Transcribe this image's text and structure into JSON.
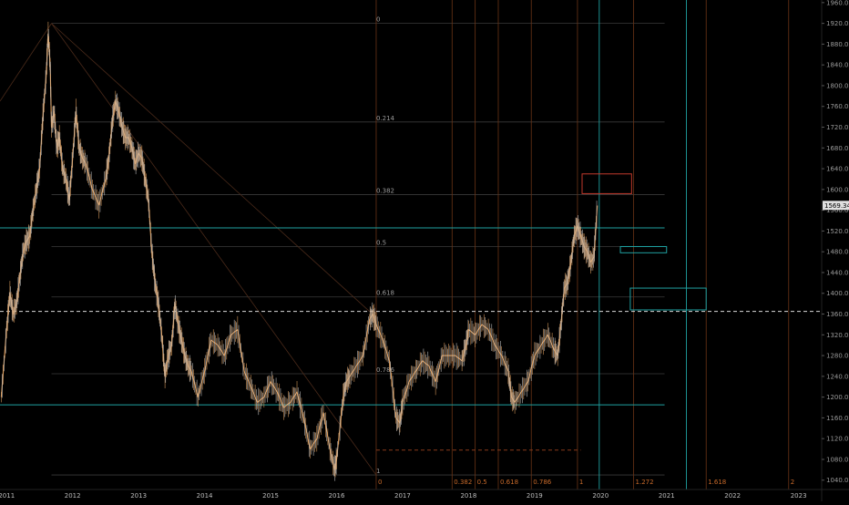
{
  "chart_data": {
    "type": "line",
    "title": "",
    "xlabel": "",
    "ylabel": "",
    "xlim": [
      2010.9,
      2023.35
    ],
    "ylim": [
      1022,
      1965
    ],
    "price_ticks": [
      1960,
      1920,
      1880,
      1840,
      1800,
      1760,
      1720,
      1680,
      1640,
      1600,
      1560,
      1520,
      1480,
      1440,
      1400,
      1360,
      1320,
      1280,
      1240,
      1200,
      1160,
      1120,
      1080,
      1040
    ],
    "price_tick_labels": [
      "1960.00",
      "1920.00",
      "1880.00",
      "1840.00",
      "1800.00",
      "1760.00",
      "1720.00",
      "1680.00",
      "1640.00",
      "1600.00",
      "1560.00",
      "1520.00",
      "1480.00",
      "1440.00",
      "1400.00",
      "1360.00",
      "1320.00",
      "1280.00",
      "1240.00",
      "1200.00",
      "1160.00",
      "1120.00",
      "1080.00",
      "1040.00"
    ],
    "time_ticks": [
      {
        "x": 2011.0,
        "label": "2011"
      },
      {
        "x": 2012.0,
        "label": "2012"
      },
      {
        "x": 2013.0,
        "label": "2013"
      },
      {
        "x": 2014.0,
        "label": "2014"
      },
      {
        "x": 2015.0,
        "label": "2015"
      },
      {
        "x": 2016.0,
        "label": "2016"
      },
      {
        "x": 2017.0,
        "label": "2017"
      },
      {
        "x": 2018.0,
        "label": "2018"
      },
      {
        "x": 2019.0,
        "label": "2019"
      },
      {
        "x": 2020.0,
        "label": "2020"
      },
      {
        "x": 2021.0,
        "label": "2021"
      },
      {
        "x": 2022.0,
        "label": "2022"
      },
      {
        "x": 2023.0,
        "label": "2023"
      }
    ],
    "last_price": 1569.34,
    "last_price_label": "1569.34",
    "series": [
      {
        "type": "candlestick-approx",
        "x": [
          2010.92,
          2011.0,
          2011.05,
          2011.1,
          2011.15,
          2011.2,
          2011.25,
          2011.3,
          2011.35,
          2011.4,
          2011.45,
          2011.5,
          2011.55,
          2011.6,
          2011.63,
          2011.66,
          2011.68,
          2011.72,
          2011.76,
          2011.8,
          2011.85,
          2011.9,
          2011.95,
          2012.0,
          2012.05,
          2012.1,
          2012.15,
          2012.2,
          2012.3,
          2012.4,
          2012.5,
          2012.55,
          2012.6,
          2012.65,
          2012.7,
          2012.75,
          2012.8,
          2012.85,
          2012.9,
          2012.95,
          2013.0,
          2013.05,
          2013.1,
          2013.15,
          2013.2,
          2013.25,
          2013.3,
          2013.35,
          2013.4,
          2013.45,
          2013.5,
          2013.55,
          2013.6,
          2013.65,
          2013.7,
          2013.75,
          2013.8,
          2013.9,
          2014.0,
          2014.1,
          2014.2,
          2014.3,
          2014.4,
          2014.5,
          2014.6,
          2014.7,
          2014.8,
          2014.9,
          2015.0,
          2015.1,
          2015.2,
          2015.3,
          2015.4,
          2015.5,
          2015.6,
          2015.7,
          2015.8,
          2015.9,
          2015.97,
          2016.0,
          2016.1,
          2016.15,
          2016.2,
          2016.3,
          2016.4,
          2016.5,
          2016.55,
          2016.6,
          2016.7,
          2016.8,
          2016.9,
          2016.96,
          2017.0,
          2017.1,
          2017.2,
          2017.3,
          2017.4,
          2017.5,
          2017.6,
          2017.7,
          2017.8,
          2017.9,
          2017.96,
          2018.0,
          2018.1,
          2018.2,
          2018.3,
          2018.4,
          2018.5,
          2018.6,
          2018.65,
          2018.7,
          2018.8,
          2018.9,
          2019.0,
          2019.1,
          2019.2,
          2019.3,
          2019.35,
          2019.4,
          2019.45,
          2019.5,
          2019.55,
          2019.6,
          2019.65,
          2019.7,
          2019.75,
          2019.8,
          2019.85,
          2019.9,
          2019.95
        ],
        "y": [
          1200,
          1330,
          1400,
          1360,
          1380,
          1430,
          1480,
          1500,
          1510,
          1560,
          1600,
          1640,
          1740,
          1820,
          1900,
          1840,
          1720,
          1750,
          1680,
          1700,
          1640,
          1620,
          1580,
          1660,
          1750,
          1680,
          1660,
          1650,
          1600,
          1570,
          1620,
          1660,
          1730,
          1770,
          1750,
          1720,
          1700,
          1700,
          1680,
          1650,
          1670,
          1660,
          1620,
          1580,
          1480,
          1420,
          1380,
          1320,
          1240,
          1280,
          1300,
          1380,
          1340,
          1310,
          1280,
          1260,
          1250,
          1200,
          1250,
          1310,
          1300,
          1280,
          1320,
          1330,
          1250,
          1220,
          1190,
          1200,
          1230,
          1210,
          1180,
          1190,
          1210,
          1160,
          1100,
          1120,
          1170,
          1100,
          1060,
          1080,
          1200,
          1230,
          1240,
          1260,
          1280,
          1350,
          1360,
          1340,
          1310,
          1270,
          1160,
          1150,
          1190,
          1230,
          1250,
          1270,
          1260,
          1230,
          1280,
          1280,
          1280,
          1270,
          1300,
          1330,
          1320,
          1340,
          1330,
          1300,
          1280,
          1250,
          1200,
          1190,
          1210,
          1230,
          1280,
          1300,
          1320,
          1290,
          1280,
          1340,
          1410,
          1420,
          1460,
          1510,
          1530,
          1510,
          1490,
          1480,
          1460,
          1470,
          1569
        ],
        "color": "#e0a060"
      }
    ],
    "horizontal_lines": [
      {
        "y": 1526,
        "color": "#1fa0a0",
        "x_from": 2010.9,
        "x_to": 2020.97
      },
      {
        "y": 1185,
        "color": "#1fa0a0",
        "x_from": 2010.9,
        "x_to": 2020.97
      },
      {
        "y": 1365,
        "color": "#d9d9d9",
        "dashed": true,
        "x_from": 2010.9,
        "x_to": 2023.35
      },
      {
        "y": 1098,
        "color": "#8a3a1a",
        "dashed": true,
        "x_from": 2016.6,
        "x_to": 2019.7
      }
    ],
    "fib_levels": [
      {
        "ratio": "0",
        "price": 1920
      },
      {
        "ratio": "0.214",
        "price": 1730
      },
      {
        "ratio": "0.382",
        "price": 1590
      },
      {
        "ratio": "0.5",
        "price": 1490
      },
      {
        "ratio": "0.618",
        "price": 1393
      },
      {
        "ratio": "0.786",
        "price": 1245
      },
      {
        "ratio": "1",
        "price": 1050
      }
    ],
    "fib_time_lines": [
      {
        "label": "0",
        "x": 2016.6
      },
      {
        "label": "0.382",
        "x": 2017.75
      },
      {
        "label": "0.5",
        "x": 2018.1
      },
      {
        "label": "0.618",
        "x": 2018.45
      },
      {
        "label": "0.786",
        "x": 2018.95
      },
      {
        "label": "1",
        "x": 2019.65
      },
      {
        "label": "1.272",
        "x": 2020.5
      },
      {
        "label": "1.618",
        "x": 2021.6
      },
      {
        "label": "2",
        "x": 2022.85
      }
    ],
    "cyan_verticals": [
      2019.98,
      2021.3
    ],
    "zones": [
      {
        "x0": 2019.72,
        "x1": 2020.47,
        "y0": 1592,
        "y1": 1630,
        "color": "#c0392b"
      },
      {
        "x0": 2020.3,
        "x1": 2021.0,
        "y0": 1478,
        "y1": 1490,
        "color": "#1fa0a0"
      },
      {
        "x0": 2020.45,
        "x1": 2021.6,
        "y0": 1368,
        "y1": 1410,
        "color": "#1fa0a0"
      }
    ],
    "diagonals": [
      {
        "from": [
          2011.68,
          1920
        ],
        "to": [
          2016.6,
          1050
        ]
      },
      {
        "from": [
          2010.9,
          1770
        ],
        "to": [
          2011.68,
          1920
        ]
      },
      {
        "from": [
          2011.68,
          1920
        ],
        "to": [
          2016.5,
          1365
        ]
      }
    ]
  }
}
